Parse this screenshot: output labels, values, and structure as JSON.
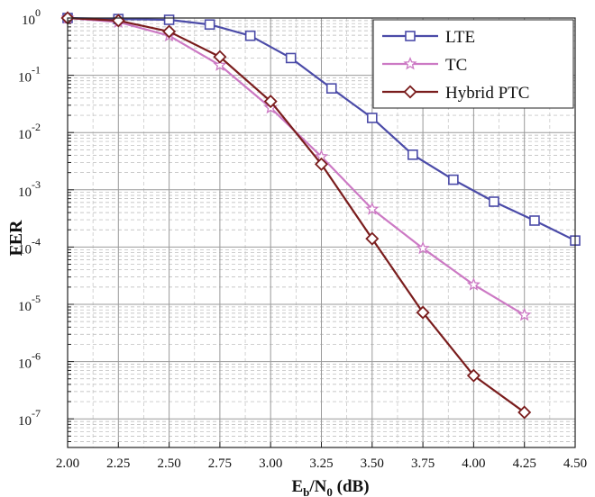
{
  "chart_data": {
    "type": "line",
    "xlabel": {
      "main": "E",
      "sub1": "b",
      "mid": "/N",
      "sub2": "0",
      "tail": " (dB)"
    },
    "ylabel": "FER",
    "xlim": [
      2.0,
      4.5
    ],
    "ylim_log10": [
      -7.5,
      0
    ],
    "y_scale": "log",
    "grid": true,
    "legend_position": "top-right",
    "x_ticks": [
      {
        "value": 2.0,
        "label": "2.00"
      },
      {
        "value": 2.25,
        "label": "2.25"
      },
      {
        "value": 2.5,
        "label": "2.50"
      },
      {
        "value": 2.75,
        "label": "2.75"
      },
      {
        "value": 3.0,
        "label": "3.00"
      },
      {
        "value": 3.25,
        "label": "3.25"
      },
      {
        "value": 3.5,
        "label": "3.50"
      },
      {
        "value": 3.75,
        "label": "3.75"
      },
      {
        "value": 4.0,
        "label": "4.00"
      },
      {
        "value": 4.25,
        "label": "4.25"
      },
      {
        "value": 4.5,
        "label": "4.50"
      }
    ],
    "y_ticks": [
      {
        "exp": 0,
        "base": "10",
        "power": "0"
      },
      {
        "exp": -1,
        "base": "10",
        "power": "-1"
      },
      {
        "exp": -2,
        "base": "10",
        "power": "-2"
      },
      {
        "exp": -3,
        "base": "10",
        "power": "-3"
      },
      {
        "exp": -4,
        "base": "10",
        "power": "-4"
      },
      {
        "exp": -5,
        "base": "10",
        "power": "-5"
      },
      {
        "exp": -6,
        "base": "10",
        "power": "-6"
      },
      {
        "exp": -7,
        "base": "10",
        "power": "-7"
      }
    ],
    "series": [
      {
        "name": "LTE",
        "color": "#4b4ba8",
        "marker": "square",
        "x": [
          2.0,
          2.25,
          2.5,
          2.7,
          2.9,
          3.1,
          3.3,
          3.5,
          3.7,
          3.9,
          4.1,
          4.3,
          4.5
        ],
        "y": [
          1.0,
          0.96,
          0.93,
          0.77,
          0.49,
          0.2,
          0.059,
          0.018,
          0.0041,
          0.0015,
          0.00062,
          0.00029,
          0.00013
        ]
      },
      {
        "name": "TC",
        "color": "#cc79c4",
        "marker": "star",
        "x": [
          2.0,
          2.25,
          2.5,
          2.75,
          3.0,
          3.25,
          3.5,
          3.75,
          4.0,
          4.25
        ],
        "y": [
          1.0,
          0.85,
          0.49,
          0.15,
          0.027,
          0.0038,
          0.00046,
          9.5e-05,
          2.2e-05,
          6.5e-06
        ]
      },
      {
        "name": "Hybrid PTC",
        "color": "#7a1d1d",
        "marker": "diamond",
        "x": [
          2.0,
          2.25,
          2.5,
          2.75,
          3.0,
          3.25,
          3.5,
          3.75,
          4.0,
          4.25
        ],
        "y": [
          1.0,
          0.9,
          0.58,
          0.21,
          0.035,
          0.0028,
          0.00014,
          7.2e-06,
          5.7e-07,
          1.3e-07
        ]
      }
    ]
  }
}
